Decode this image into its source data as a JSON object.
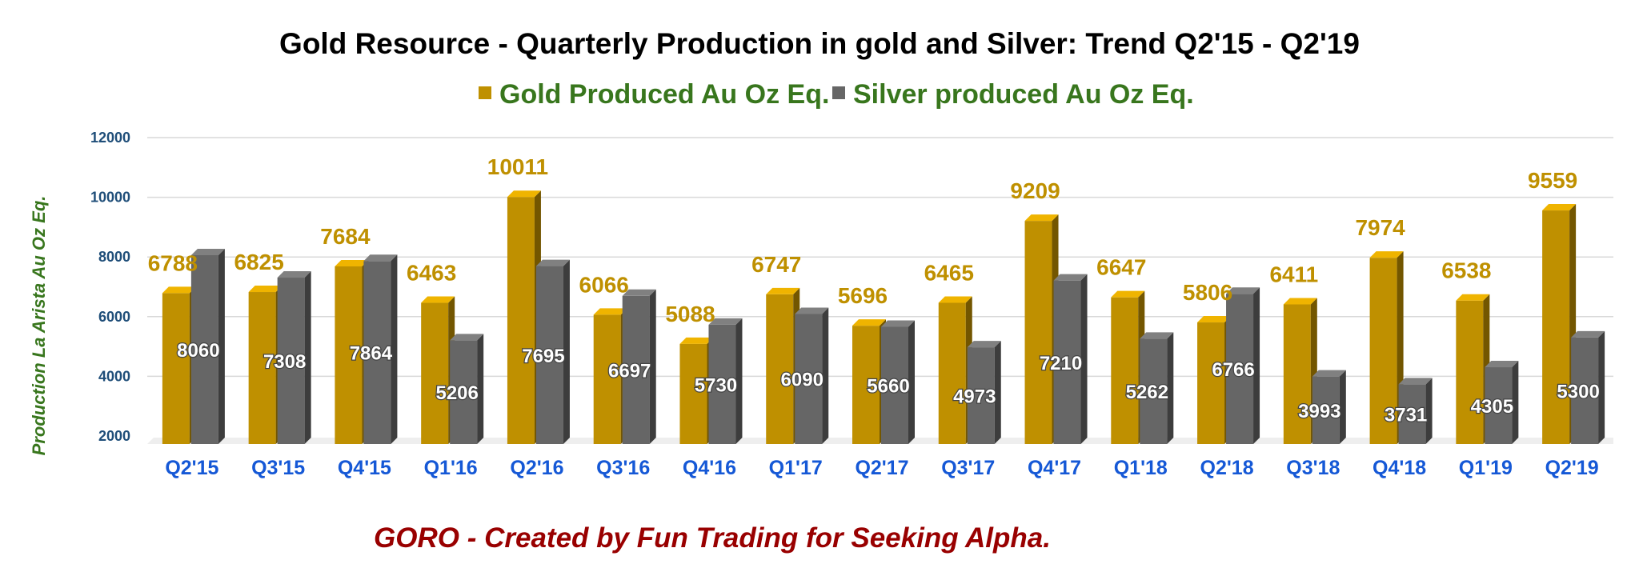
{
  "chart_data": {
    "type": "bar",
    "title": "Gold Resource - Quarterly Production in gold and Silver: Trend Q2'15 - Q2'19",
    "ylabel": "Production La Arista Au Oz Eq.",
    "xlabel": "",
    "ylim": [
      2000,
      12000
    ],
    "yticks": [
      "2000",
      "4000",
      "6000",
      "8000",
      "10000",
      "12000"
    ],
    "grid": true,
    "legend_position": "top-center",
    "categories": [
      "Q2'15",
      "Q3'15",
      "Q4'15",
      "Q1'16",
      "Q2'16",
      "Q3'16",
      "Q4'16",
      "Q1'17",
      "Q2'17",
      "Q3'17",
      "Q4'17",
      "Q1'18",
      "Q2'18",
      "Q3'18",
      "Q4'18",
      "Q1'19",
      "Q2'19"
    ],
    "series": [
      {
        "name": "Gold Produced Au Oz Eq.",
        "color": "#bf9000",
        "values": [
          6788,
          6825,
          7684,
          6463,
          10011,
          6066,
          5088,
          6747,
          5696,
          6465,
          9209,
          6647,
          5806,
          6411,
          7974,
          6538,
          9559
        ]
      },
      {
        "name": "Silver produced Au Oz Eq.",
        "color": "#666666",
        "values": [
          8060,
          7308,
          7864,
          5206,
          7695,
          6697,
          5730,
          6090,
          5660,
          4973,
          7210,
          5262,
          6766,
          3993,
          3731,
          4305,
          5300
        ]
      }
    ],
    "footer": "GORO - Created by Fun Trading for Seeking Alpha."
  }
}
